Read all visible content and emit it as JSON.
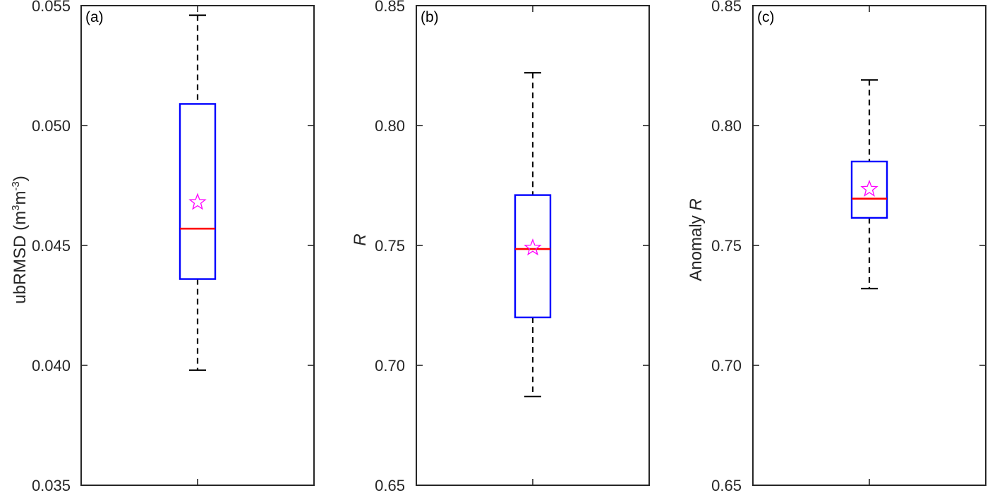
{
  "chart_data": [
    {
      "type": "box",
      "panel_label": "(a)",
      "ylabel": "ubRMSD (m3m-3)",
      "ylabel_parts": {
        "prefix": "ubRMSD (m",
        "sup1": "3",
        "mid": "m",
        "sup2": "-3",
        "suffix": ")"
      },
      "ylim": [
        0.035,
        0.055
      ],
      "yticks": [
        0.035,
        0.04,
        0.045,
        0.05,
        0.055
      ],
      "ytick_labels": [
        "0.035",
        "0.040",
        "0.045",
        "0.050",
        "0.055"
      ],
      "box": {
        "whisker_low": 0.0398,
        "q1": 0.0436,
        "median": 0.0457,
        "q3": 0.0509,
        "whisker_high": 0.0546,
        "mean": 0.0468
      },
      "colors": {
        "box": "#0000ff",
        "median": "#ff0000",
        "mean_marker": "#ff00ff",
        "whisker": "#000000"
      }
    },
    {
      "type": "box",
      "panel_label": "(b)",
      "ylabel": "R",
      "ylim": [
        0.65,
        0.85
      ],
      "yticks": [
        0.65,
        0.7,
        0.75,
        0.8,
        0.85
      ],
      "ytick_labels": [
        "0.65",
        "0.70",
        "0.75",
        "0.80",
        "0.85"
      ],
      "box": {
        "whisker_low": 0.687,
        "q1": 0.72,
        "median": 0.7485,
        "q3": 0.771,
        "whisker_high": 0.822,
        "mean": 0.749
      },
      "colors": {
        "box": "#0000ff",
        "median": "#ff0000",
        "mean_marker": "#ff00ff",
        "whisker": "#000000"
      }
    },
    {
      "type": "box",
      "panel_label": "(c)",
      "ylabel": "Anomaly R",
      "ylabel_parts": {
        "prefix": "Anomaly ",
        "italic": "R"
      },
      "ylim": [
        0.65,
        0.85
      ],
      "yticks": [
        0.65,
        0.7,
        0.75,
        0.8,
        0.85
      ],
      "ytick_labels": [
        "0.65",
        "0.70",
        "0.75",
        "0.80",
        "0.85"
      ],
      "box": {
        "whisker_low": 0.732,
        "q1": 0.7615,
        "median": 0.7695,
        "q3": 0.785,
        "whisker_high": 0.819,
        "mean": 0.7735
      },
      "colors": {
        "box": "#0000ff",
        "median": "#ff0000",
        "mean_marker": "#ff00ff",
        "whisker": "#000000"
      }
    }
  ]
}
